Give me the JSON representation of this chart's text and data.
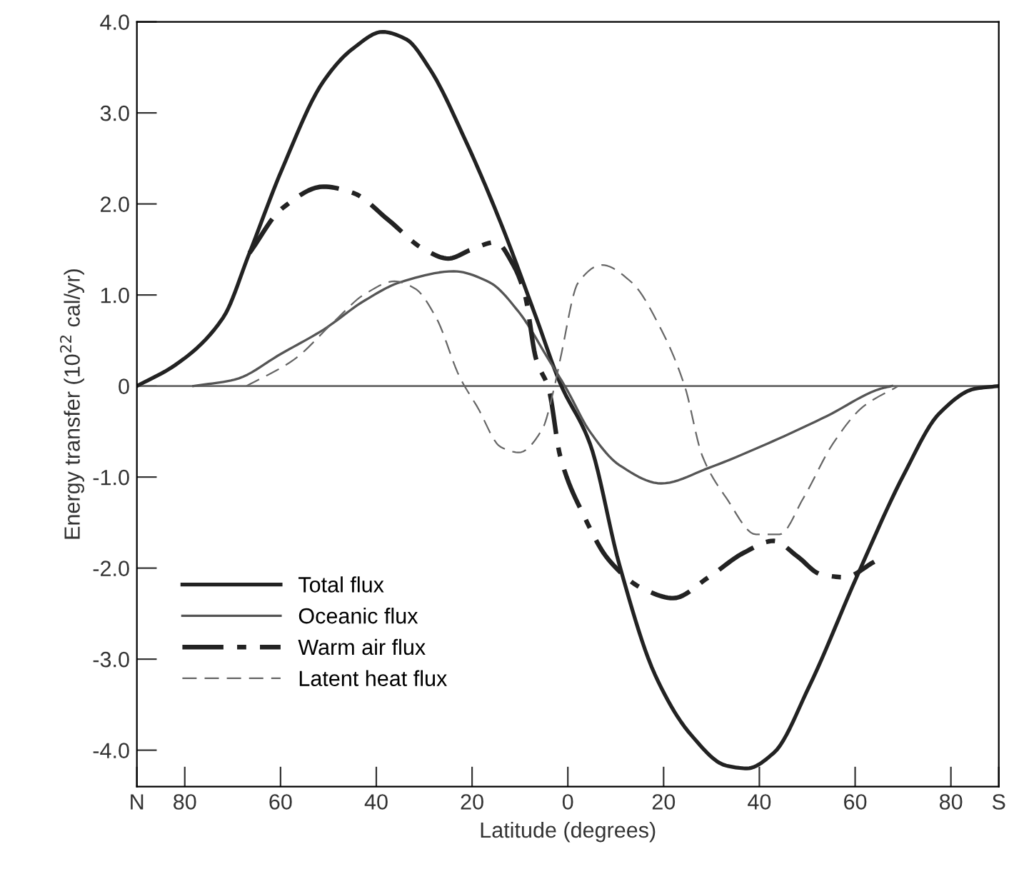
{
  "chart_data": {
    "type": "line",
    "xlabel": "Latitude (degrees)",
    "ylabel": "Energy transfer (10$^{22}$ cal/yr)",
    "xlim": [
      -90,
      90
    ],
    "ylim": [
      -4.4,
      4.0
    ],
    "xticks": [
      {
        "value": -90,
        "label": "N"
      },
      {
        "value": -80,
        "label": "80"
      },
      {
        "value": -60,
        "label": "60"
      },
      {
        "value": -40,
        "label": "40"
      },
      {
        "value": -20,
        "label": "20"
      },
      0,
      20,
      40,
      60,
      80,
      {
        "value": 90,
        "label": "S"
      }
    ],
    "yticks": [
      {
        "value": -4,
        "label": "-4.0"
      },
      {
        "value": -3,
        "label": "-3.0"
      },
      {
        "value": -2,
        "label": "-2.0"
      },
      {
        "value": -1,
        "label": "-1.0"
      },
      0,
      {
        "value": 1,
        "label": "1.0"
      },
      {
        "value": 2,
        "label": "2.0"
      },
      {
        "value": 3,
        "label": "3.0"
      },
      {
        "value": 4,
        "label": "4.0"
      }
    ],
    "grid": false,
    "legend": "bottom left",
    "marker": "none",
    "ref_lines": [
      {
        "axis": "y",
        "value": 0,
        "label": null,
        "color": "#666666"
      }
    ],
    "series": [
      {
        "name": "Total flux",
        "color": "#222222",
        "line_style": "solid",
        "x": [
          -90,
          -82,
          -72,
          -66.5,
          -59.7,
          -51,
          -44.8,
          -38.7,
          -33.8,
          -28.8,
          -21.4,
          -14,
          -6.6,
          -1.6,
          4.6,
          10.8,
          18.2,
          25.7,
          33.1,
          37.4,
          43,
          50.4,
          60.3,
          70.2,
          77.6,
          85,
          90
        ],
        "values": [
          0,
          0.23,
          0.75,
          1.46,
          2.38,
          3.35,
          3.71,
          3.89,
          3.81,
          3.48,
          2.7,
          1.79,
          0.75,
          0.03,
          -0.63,
          -1.97,
          -3.17,
          -3.83,
          -4.17,
          -4.2,
          -4.03,
          -3.3,
          -2.1,
          -0.97,
          -0.3,
          -0.03,
          0
        ]
      },
      {
        "name": "Oceanic flux",
        "color": "#555555",
        "line_style": "solid",
        "x": [
          -78.2,
          -69.6,
          -59.7,
          -51,
          -42.4,
          -35,
          -23.8,
          -16.4,
          -10.2,
          -4,
          -0.3,
          4.6,
          10.8,
          19.5,
          29.4,
          41.8,
          54.1,
          65.3,
          67.7
        ],
        "values": [
          0,
          0.07,
          0.36,
          0.62,
          0.94,
          1.14,
          1.26,
          1.14,
          0.81,
          0.29,
          -0.03,
          -0.5,
          -0.87,
          -1.07,
          -0.9,
          -0.63,
          -0.33,
          -0.03,
          0
        ]
      },
      {
        "name": "Warm air flux",
        "color": "#222222",
        "line_style": "dashdot",
        "x": [
          -66.5,
          -59.7,
          -51,
          -44.8,
          -37.4,
          -30,
          -25,
          -20.1,
          -15.1,
          -11.4,
          -9,
          -6.6,
          -4,
          -1.6,
          3.4,
          8.4,
          15.8,
          22,
          29.4,
          36.8,
          43,
          47.9,
          52.9,
          57.8,
          64
        ],
        "values": [
          1.46,
          1.95,
          2.19,
          2.12,
          1.82,
          1.5,
          1.4,
          1.5,
          1.58,
          1.33,
          1.01,
          0.29,
          -0.03,
          -0.77,
          -1.43,
          -1.9,
          -2.23,
          -2.33,
          -2.1,
          -1.83,
          -1.7,
          -1.87,
          -2.07,
          -2.1,
          -1.93
        ]
      },
      {
        "name": "Latent heat flux",
        "color": "#666666",
        "line_style": "dashed",
        "x": [
          -67.1,
          -57.2,
          -48.6,
          -42.4,
          -36.2,
          -31.9,
          -27.5,
          -22.6,
          -18.9,
          -14,
          -10.2,
          -5.3,
          -2.9,
          -1.6,
          2.2,
          7.1,
          13.3,
          19.5,
          24.4,
          28.1,
          33.1,
          39.3,
          44.2,
          49.2,
          55.4,
          61.6,
          69
        ],
        "values": [
          0,
          0.29,
          0.72,
          1.01,
          1.15,
          1.07,
          0.75,
          0.1,
          -0.23,
          -0.67,
          -0.73,
          -0.47,
          -0.03,
          0.29,
          1.14,
          1.33,
          1.14,
          0.62,
          0,
          -0.77,
          -1.23,
          -1.63,
          -1.63,
          -1.23,
          -0.63,
          -0.23,
          0
        ]
      }
    ]
  }
}
